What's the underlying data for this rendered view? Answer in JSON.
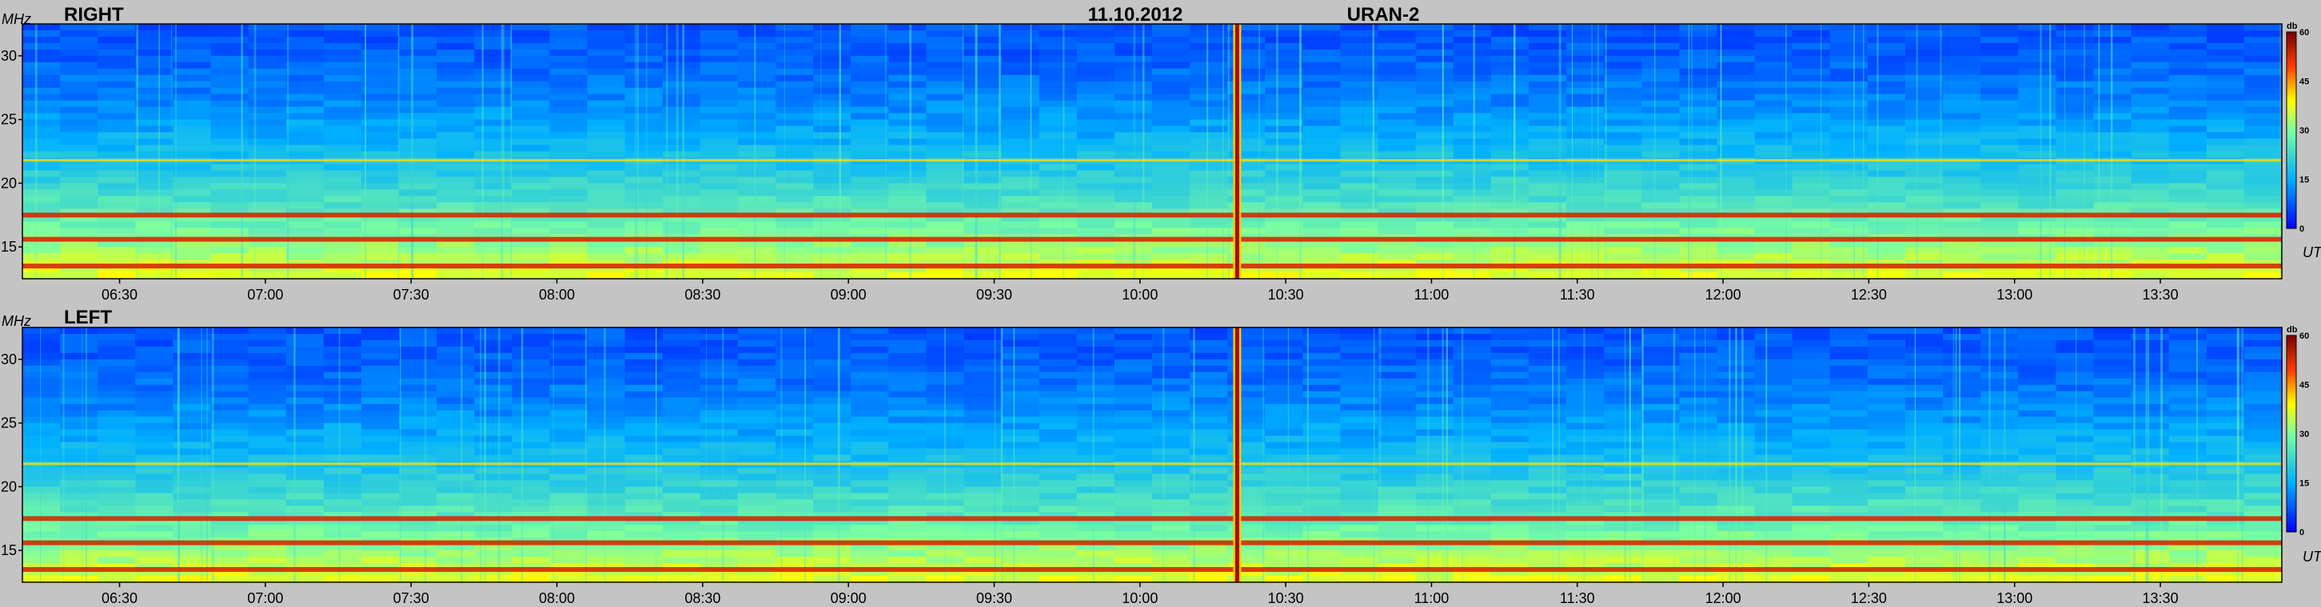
{
  "header": {
    "date": "11.10.2012",
    "instrument": "URAN-2"
  },
  "chart_data": [
    {
      "type": "heatmap",
      "title": "RIGHT",
      "ylabel": "MHz",
      "xlabel": "UT",
      "x_ticks": [
        "06:30",
        "07:00",
        "07:30",
        "08:00",
        "08:30",
        "09:00",
        "09:30",
        "10:00",
        "10:30",
        "11:00",
        "11:30",
        "12:00",
        "12:30",
        "13:00",
        "13:30"
      ],
      "x_range": [
        "06:10",
        "13:55"
      ],
      "y_ticks": [
        15,
        20,
        25,
        30
      ],
      "y_range": [
        12.5,
        32.5
      ],
      "colorbar": {
        "label": "db",
        "ticks": [
          0,
          15,
          30,
          45,
          60
        ],
        "range": [
          0,
          60
        ]
      },
      "features": {
        "burst_time": "10:20",
        "persistent_bands_mhz": [
          13.5,
          15.6,
          17.5,
          21.8
        ]
      }
    },
    {
      "type": "heatmap",
      "title": "LEFT",
      "ylabel": "MHz",
      "xlabel": "UT",
      "x_ticks": [
        "06:30",
        "07:00",
        "07:30",
        "08:00",
        "08:30",
        "09:00",
        "09:30",
        "10:00",
        "10:30",
        "11:00",
        "11:30",
        "12:00",
        "12:30",
        "13:00",
        "13:30"
      ],
      "x_range": [
        "06:10",
        "13:55"
      ],
      "y_ticks": [
        15,
        20,
        25,
        30
      ],
      "y_range": [
        12.5,
        32.5
      ],
      "colorbar": {
        "label": "db",
        "ticks": [
          0,
          15,
          30,
          45,
          60
        ],
        "range": [
          0,
          60
        ]
      },
      "features": {
        "burst_time": "10:20",
        "persistent_bands_mhz": [
          13.5,
          15.6,
          17.5,
          21.8
        ]
      }
    }
  ]
}
